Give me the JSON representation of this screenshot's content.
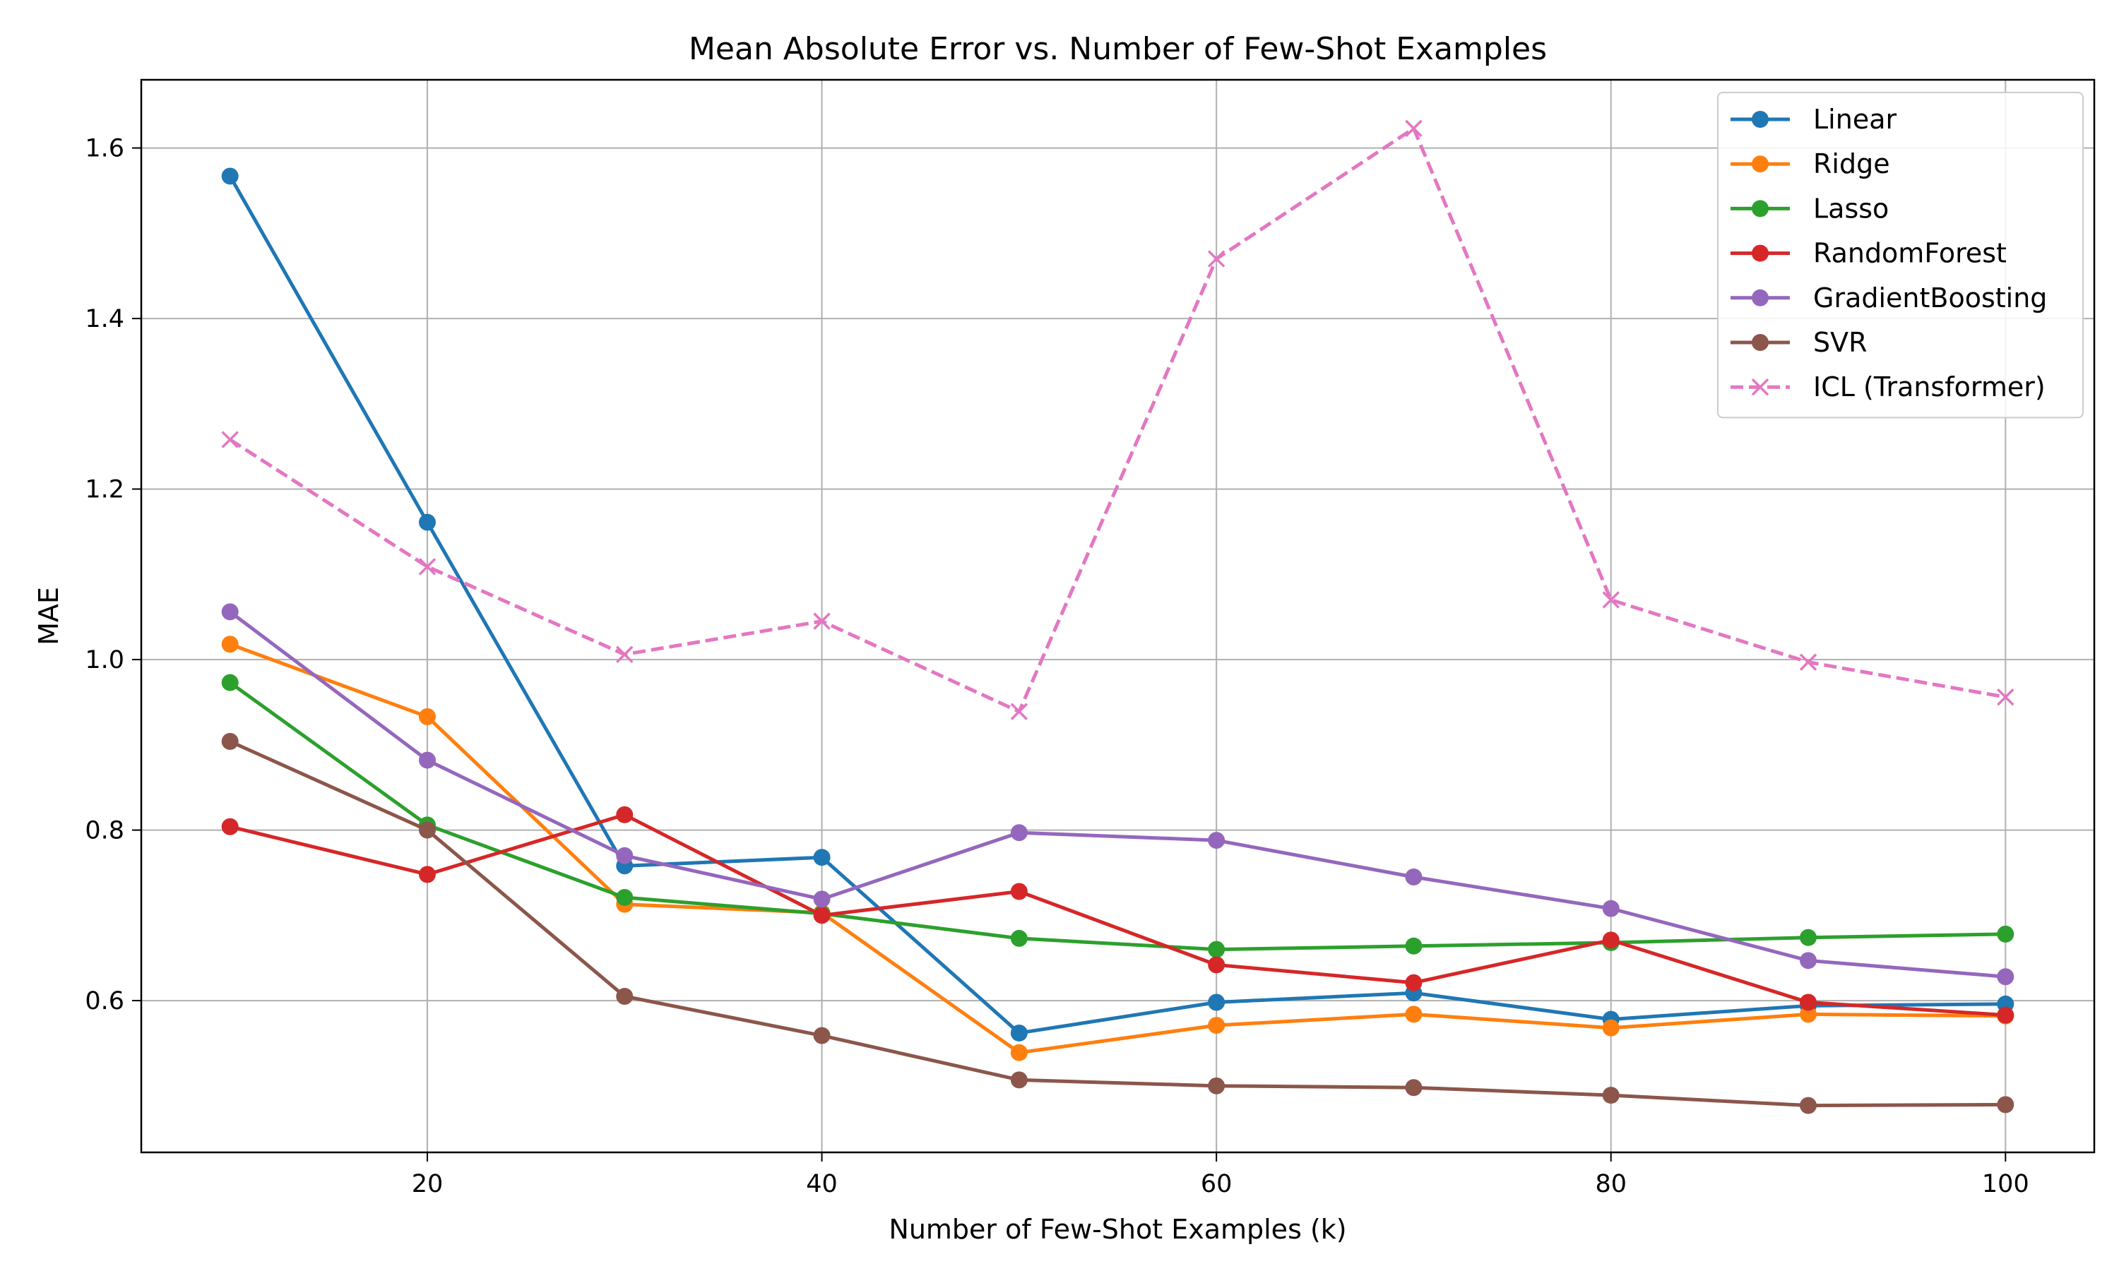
{
  "chart_data": {
    "type": "line",
    "title": "Mean Absolute Error vs. Number of Few-Shot Examples",
    "xlabel": "Number of Few-Shot Examples (k)",
    "ylabel": "MAE",
    "x": [
      10,
      20,
      30,
      40,
      50,
      60,
      70,
      80,
      90,
      100
    ],
    "xlim": [
      5.5,
      104.5
    ],
    "ylim": [
      0.422,
      1.68
    ],
    "xticks": [
      20,
      40,
      60,
      80,
      100
    ],
    "yticks": [
      0.6,
      0.8,
      1.0,
      1.2,
      1.4,
      1.6
    ],
    "grid": true,
    "legend_position": "top-right",
    "series": [
      {
        "name": "Linear",
        "color": "#1f77b4",
        "marker": "circle",
        "linestyle": "solid",
        "values": [
          1.567,
          1.161,
          0.758,
          0.768,
          0.562,
          0.598,
          0.609,
          0.578,
          0.594,
          0.596
        ]
      },
      {
        "name": "Ridge",
        "color": "#ff7f0e",
        "marker": "circle",
        "linestyle": "solid",
        "values": [
          1.018,
          0.933,
          0.713,
          0.703,
          0.539,
          0.571,
          0.584,
          0.568,
          0.584,
          0.582
        ]
      },
      {
        "name": "Lasso",
        "color": "#2ca02c",
        "marker": "circle",
        "linestyle": "solid",
        "values": [
          0.973,
          0.806,
          0.721,
          0.702,
          0.673,
          0.66,
          0.664,
          0.668,
          0.674,
          0.678
        ]
      },
      {
        "name": "RandomForest",
        "color": "#d62728",
        "marker": "circle",
        "linestyle": "solid",
        "values": [
          0.804,
          0.748,
          0.818,
          0.7,
          0.728,
          0.642,
          0.621,
          0.671,
          0.598,
          0.583
        ]
      },
      {
        "name": "GradientBoosting",
        "color": "#9467bd",
        "marker": "circle",
        "linestyle": "solid",
        "values": [
          1.056,
          0.882,
          0.77,
          0.719,
          0.797,
          0.788,
          0.745,
          0.708,
          0.647,
          0.628
        ]
      },
      {
        "name": "SVR",
        "color": "#8c564b",
        "marker": "circle",
        "linestyle": "solid",
        "values": [
          0.904,
          0.8,
          0.605,
          0.559,
          0.507,
          0.5,
          0.498,
          0.489,
          0.477,
          0.478
        ]
      },
      {
        "name": "ICL (Transformer)",
        "color": "#e377c2",
        "marker": "x",
        "linestyle": "dashed",
        "values": [
          1.258,
          1.109,
          1.006,
          1.045,
          0.939,
          1.47,
          1.623,
          1.07,
          0.997,
          0.956
        ]
      }
    ]
  }
}
